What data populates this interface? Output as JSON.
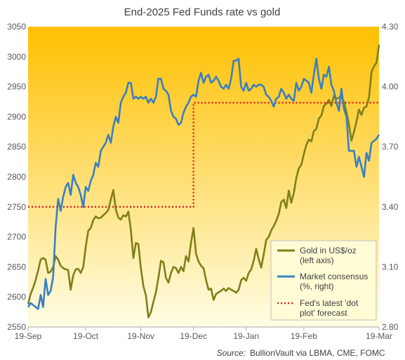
{
  "chart_data": {
    "type": "line",
    "title": "End-2025 Fed Funds rate vs gold",
    "source_label": "Source:",
    "source_text": "BullionVault via LBMA, CME, FOMC",
    "x_ticks": [
      "19-Sep",
      "19-Oct",
      "19-Nov",
      "19-Dec",
      "19-Jan",
      "19-Feb",
      "19-Mar"
    ],
    "y_left": {
      "ticks": [
        "3050",
        "3000",
        "2950",
        "2900",
        "2850",
        "2800",
        "2750",
        "2700",
        "2650",
        "2600",
        "2550"
      ],
      "min": 2550,
      "max": 3050
    },
    "y_right": {
      "ticks": [
        "4.30",
        "4.00",
        "3.70",
        "3.40",
        "3.10",
        "2.80"
      ],
      "min": 2.8,
      "max": 4.3
    },
    "colors": {
      "gold": "#7f7f1a",
      "consensus": "#3a7fc1",
      "dotplot": "#e0201b",
      "bg_top": "#ffc000",
      "bg_bottom": "#fffde5",
      "legend_bg": "#fffcd6"
    },
    "series": [
      {
        "name": "Gold in US$/oz (left axis)",
        "legend_lines": [
          "Gold in US$/oz",
          "(left axis)"
        ],
        "axis": "left",
        "points": [
          [
            0,
            2588
          ],
          [
            1,
            2605
          ],
          [
            2,
            2615
          ],
          [
            3,
            2628
          ],
          [
            4,
            2644
          ],
          [
            5,
            2662
          ],
          [
            6,
            2665
          ],
          [
            7,
            2662
          ],
          [
            8,
            2640
          ],
          [
            9,
            2642
          ],
          [
            10,
            2650
          ],
          [
            11,
            2668
          ],
          [
            12,
            2662
          ],
          [
            13,
            2652
          ],
          [
            14,
            2648
          ],
          [
            15,
            2646
          ],
          [
            16,
            2645
          ],
          [
            17,
            2612
          ],
          [
            18,
            2636
          ],
          [
            19,
            2646
          ],
          [
            20,
            2647
          ],
          [
            21,
            2640
          ],
          [
            22,
            2650
          ],
          [
            23,
            2683
          ],
          [
            24,
            2710
          ],
          [
            25,
            2715
          ],
          [
            26,
            2728
          ],
          [
            27,
            2734
          ],
          [
            28,
            2731
          ],
          [
            29,
            2732
          ],
          [
            30,
            2736
          ],
          [
            31,
            2740
          ],
          [
            32,
            2745
          ],
          [
            33,
            2762
          ],
          [
            34,
            2778
          ],
          [
            35,
            2746
          ],
          [
            36,
            2732
          ],
          [
            37,
            2729
          ],
          [
            38,
            2736
          ],
          [
            39,
            2734
          ],
          [
            40,
            2742
          ],
          [
            41,
            2712
          ],
          [
            42,
            2665
          ],
          [
            43,
            2690
          ],
          [
            44,
            2688
          ],
          [
            45,
            2648
          ],
          [
            46,
            2618
          ],
          [
            47,
            2603
          ],
          [
            48,
            2566
          ],
          [
            49,
            2575
          ],
          [
            50,
            2592
          ],
          [
            51,
            2608
          ],
          [
            52,
            2632
          ],
          [
            53,
            2660
          ],
          [
            54,
            2658
          ],
          [
            55,
            2632
          ],
          [
            56,
            2624
          ],
          [
            57,
            2640
          ],
          [
            58,
            2650
          ],
          [
            59,
            2648
          ],
          [
            60,
            2640
          ],
          [
            61,
            2650
          ],
          [
            62,
            2643
          ],
          [
            63,
            2668
          ],
          [
            64,
            2659
          ],
          [
            65,
            2690
          ],
          [
            66,
            2715
          ],
          [
            67,
            2672
          ],
          [
            68,
            2659
          ],
          [
            69,
            2652
          ],
          [
            70,
            2648
          ],
          [
            71,
            2628
          ],
          [
            72,
            2612
          ],
          [
            73,
            2614
          ],
          [
            74,
            2595
          ],
          [
            75,
            2605
          ],
          [
            76,
            2608
          ],
          [
            77,
            2610
          ],
          [
            78,
            2614
          ],
          [
            79,
            2610
          ],
          [
            80,
            2615
          ],
          [
            81,
            2612
          ],
          [
            82,
            2610
          ],
          [
            83,
            2607
          ],
          [
            84,
            2612
          ],
          [
            85,
            2628
          ],
          [
            86,
            2632
          ],
          [
            87,
            2627
          ],
          [
            88,
            2640
          ],
          [
            89,
            2646
          ],
          [
            90,
            2660
          ],
          [
            91,
            2680
          ],
          [
            92,
            2663
          ],
          [
            93,
            2649
          ],
          [
            94,
            2671
          ],
          [
            95,
            2695
          ],
          [
            96,
            2700
          ],
          [
            97,
            2711
          ],
          [
            98,
            2718
          ],
          [
            99,
            2727
          ],
          [
            100,
            2738
          ],
          [
            101,
            2758
          ],
          [
            102,
            2762
          ],
          [
            103,
            2748
          ],
          [
            104,
            2777
          ],
          [
            105,
            2757
          ],
          [
            106,
            2773
          ],
          [
            107,
            2798
          ],
          [
            108,
            2814
          ],
          [
            109,
            2820
          ],
          [
            110,
            2838
          ],
          [
            111,
            2853
          ],
          [
            112,
            2862
          ],
          [
            113,
            2859
          ],
          [
            114,
            2876
          ],
          [
            115,
            2880
          ],
          [
            116,
            2897
          ],
          [
            117,
            2902
          ],
          [
            118,
            2918
          ],
          [
            119,
            2922
          ],
          [
            120,
            2928
          ],
          [
            121,
            2918
          ],
          [
            122,
            2935
          ],
          [
            123,
            2930
          ],
          [
            124,
            2932
          ],
          [
            125,
            2933
          ],
          [
            126,
            2925
          ],
          [
            127,
            2908
          ],
          [
            128,
            2888
          ],
          [
            129,
            2860
          ],
          [
            130,
            2875
          ],
          [
            131,
            2892
          ],
          [
            132,
            2912
          ],
          [
            133,
            2903
          ],
          [
            134,
            2915
          ],
          [
            135,
            2917
          ],
          [
            136,
            2932
          ],
          [
            137,
            2975
          ],
          [
            138,
            2984
          ],
          [
            139,
            2990
          ],
          [
            140,
            3020
          ]
        ]
      },
      {
        "name": "Market consensus (%, right)",
        "legend_lines": [
          "Market consensus",
          "(%, right)"
        ],
        "axis": "right",
        "points": [
          [
            0,
            2.9
          ],
          [
            1,
            2.92
          ],
          [
            2,
            2.91
          ],
          [
            3,
            2.9
          ],
          [
            4,
            2.89
          ],
          [
            5,
            2.96
          ],
          [
            6,
            2.9
          ],
          [
            7,
            3.04
          ],
          [
            8,
            2.96
          ],
          [
            9,
            2.98
          ],
          [
            10,
            3.05
          ],
          [
            11,
            3.3
          ],
          [
            12,
            3.44
          ],
          [
            13,
            3.38
          ],
          [
            14,
            3.45
          ],
          [
            15,
            3.5
          ],
          [
            16,
            3.52
          ],
          [
            17,
            3.46
          ],
          [
            18,
            3.56
          ],
          [
            19,
            3.52
          ],
          [
            20,
            3.5
          ],
          [
            21,
            3.46
          ],
          [
            22,
            3.4
          ],
          [
            23,
            3.5
          ],
          [
            24,
            3.48
          ],
          [
            25,
            3.53
          ],
          [
            26,
            3.56
          ],
          [
            27,
            3.62
          ],
          [
            28,
            3.6
          ],
          [
            29,
            3.68
          ],
          [
            30,
            3.7
          ],
          [
            31,
            3.72
          ],
          [
            32,
            3.76
          ],
          [
            33,
            3.72
          ],
          [
            34,
            3.8
          ],
          [
            35,
            3.85
          ],
          [
            36,
            3.82
          ],
          [
            37,
            3.92
          ],
          [
            38,
            3.95
          ],
          [
            39,
            3.97
          ],
          [
            40,
            4.02
          ],
          [
            41,
            4.02
          ],
          [
            42,
            3.94
          ],
          [
            43,
            3.95
          ],
          [
            44,
            3.94
          ],
          [
            45,
            3.95
          ],
          [
            46,
            3.94
          ],
          [
            47,
            3.95
          ],
          [
            48,
            3.92
          ],
          [
            49,
            3.94
          ],
          [
            50,
            3.92
          ],
          [
            51,
            3.95
          ],
          [
            52,
            4.04
          ],
          [
            53,
            4.04
          ],
          [
            54,
            3.99
          ],
          [
            55,
            3.98
          ],
          [
            56,
            3.96
          ],
          [
            57,
            3.88
          ],
          [
            58,
            3.85
          ],
          [
            59,
            3.84
          ],
          [
            60,
            3.81
          ],
          [
            61,
            3.82
          ],
          [
            62,
            3.87
          ],
          [
            63,
            3.9
          ],
          [
            64,
            3.92
          ],
          [
            65,
            3.95
          ],
          [
            66,
            3.96
          ],
          [
            67,
            3.95
          ],
          [
            68,
            4.03
          ],
          [
            69,
            4.07
          ],
          [
            70,
            4.02
          ],
          [
            71,
            4.05
          ],
          [
            72,
            4.06
          ],
          [
            73,
            4.02
          ],
          [
            74,
            4.03
          ],
          [
            75,
            4.05
          ],
          [
            76,
            4.03
          ],
          [
            77,
            4.0
          ],
          [
            78,
            3.99
          ],
          [
            79,
            4.01
          ],
          [
            80,
            3.99
          ],
          [
            81,
            4.04
          ],
          [
            82,
            4.13
          ],
          [
            83,
            4.13
          ],
          [
            84,
            4.14
          ],
          [
            85,
            4.0
          ],
          [
            86,
            3.98
          ],
          [
            87,
            4.02
          ],
          [
            88,
            3.98
          ],
          [
            89,
            3.99
          ],
          [
            90,
            4.01
          ],
          [
            91,
            4.0
          ],
          [
            92,
            4.01
          ],
          [
            93,
            4.01
          ],
          [
            94,
            4.0
          ],
          [
            95,
            3.96
          ],
          [
            96,
            3.95
          ],
          [
            97,
            3.93
          ],
          [
            98,
            3.9
          ],
          [
            99,
            3.94
          ],
          [
            100,
            3.95
          ],
          [
            101,
            3.99
          ],
          [
            102,
            3.97
          ],
          [
            103,
            3.94
          ],
          [
            104,
            3.96
          ],
          [
            105,
            3.94
          ],
          [
            106,
            3.93
          ],
          [
            107,
            4.02
          ],
          [
            108,
            3.98
          ],
          [
            109,
            4.0
          ],
          [
            110,
            4.04
          ],
          [
            111,
            4.03
          ],
          [
            112,
            4.02
          ],
          [
            113,
            3.97
          ],
          [
            114,
            4.06
          ],
          [
            115,
            4.14
          ],
          [
            116,
            4.04
          ],
          [
            117,
            3.99
          ],
          [
            118,
            4.06
          ],
          [
            119,
            4.05
          ],
          [
            120,
            4.1
          ],
          [
            121,
            4.01
          ],
          [
            122,
            3.98
          ],
          [
            123,
            3.92
          ],
          [
            124,
            3.88
          ],
          [
            125,
            3.99
          ],
          [
            126,
            3.89
          ],
          [
            127,
            3.85
          ],
          [
            128,
            3.68
          ],
          [
            129,
            3.68
          ],
          [
            130,
            3.68
          ],
          [
            131,
            3.6
          ],
          [
            132,
            3.65
          ],
          [
            133,
            3.6
          ],
          [
            134,
            3.55
          ],
          [
            135,
            3.67
          ],
          [
            136,
            3.63
          ],
          [
            137,
            3.72
          ],
          [
            138,
            3.73
          ],
          [
            139,
            3.74
          ],
          [
            140,
            3.76
          ]
        ]
      },
      {
        "name": "Fed's latest 'dot plot' forecast",
        "legend_lines": [
          "Fed's latest 'dot",
          "plot' forecast"
        ],
        "axis": "right",
        "style": "dotted",
        "points": [
          [
            0,
            3.4
          ],
          [
            66,
            3.4
          ],
          [
            66,
            3.92
          ],
          [
            140,
            3.92
          ]
        ]
      }
    ],
    "x_tick_positions": [
      0,
      23,
      45,
      66,
      87,
      110,
      140
    ],
    "x_range": [
      0,
      140
    ]
  }
}
